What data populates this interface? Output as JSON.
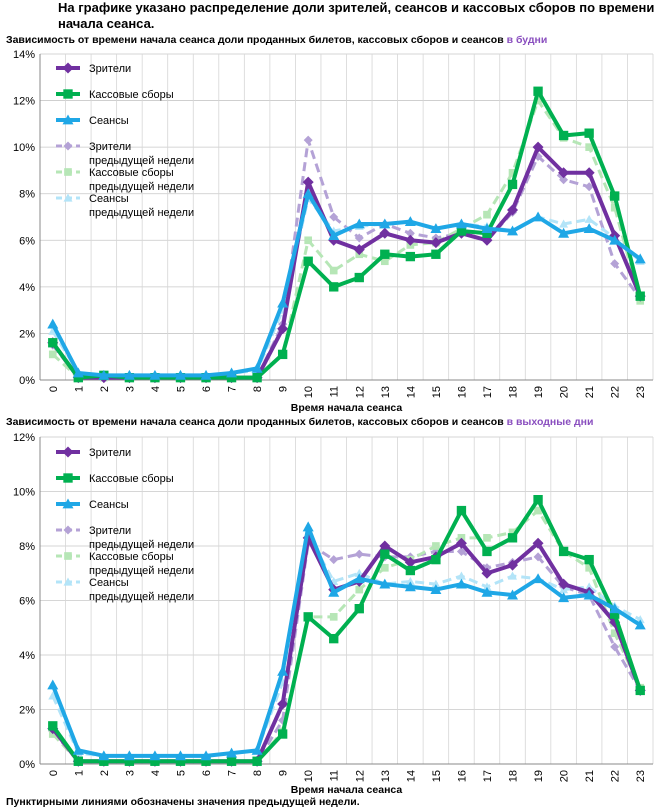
{
  "intro": "На графике указано распределение доли зрителей, сеансов и кассовых сборов по времени начала сеанса.",
  "footnote": "Пунктирными линиями обозначены значения предыдущей недели.",
  "colors": {
    "viewers": "#7030a0",
    "box_office": "#00b050",
    "sessions": "#1fa7e6",
    "viewers_prev": "#b4a2d6",
    "box_office_prev": "#b6e6b6",
    "sessions_prev": "#b3e4f8",
    "accent": "#8a4fbf"
  },
  "chart_data": [
    {
      "type": "line",
      "title_prefix": "Зависимость от времени начала сеанса доли проданных билетов, кассовых сборов и сеансов",
      "title_accent": "в будни",
      "xlabel": "Время начала сеанса",
      "ylabel": "",
      "ylim": [
        0,
        14
      ],
      "yticks": [
        "0%",
        "2%",
        "4%",
        "6%",
        "8%",
        "10%",
        "12%",
        "14%"
      ],
      "categories": [
        "0",
        "1",
        "2",
        "3",
        "4",
        "5",
        "6",
        "7",
        "8",
        "9",
        "10",
        "11",
        "12",
        "13",
        "14",
        "15",
        "16",
        "17",
        "18",
        "19",
        "20",
        "21",
        "22",
        "23"
      ],
      "grid": true,
      "legend_position": "top-left",
      "series": [
        {
          "name": "Зрители предыдущей недели",
          "key": "viewers_prev",
          "dashed": true,
          "marker": "diamond",
          "values": [
            1.5,
            0.1,
            0.1,
            0.1,
            0.1,
            0.1,
            0.1,
            0.1,
            0.1,
            2.4,
            10.3,
            7.0,
            6.1,
            6.7,
            6.3,
            6.1,
            6.3,
            6.0,
            7.2,
            9.6,
            8.6,
            8.3,
            5.0,
            3.5
          ]
        },
        {
          "name": "Кассовые сборы предыдущей недели",
          "key": "box_office_prev",
          "dashed": true,
          "marker": "square",
          "values": [
            1.1,
            0.1,
            0.1,
            0.1,
            0.1,
            0.1,
            0.1,
            0.1,
            0.1,
            1.1,
            6.0,
            4.7,
            5.4,
            5.1,
            5.8,
            5.9,
            6.5,
            7.1,
            8.9,
            12.0,
            10.4,
            10.0,
            7.4,
            3.4
          ]
        },
        {
          "name": "Сеансы предыдущей недели",
          "key": "sessions_prev",
          "dashed": true,
          "marker": "triangle",
          "values": [
            2.1,
            0.3,
            0.2,
            0.2,
            0.2,
            0.2,
            0.2,
            0.3,
            0.4,
            3.0,
            7.8,
            6.4,
            6.6,
            6.7,
            6.8,
            6.5,
            6.7,
            6.6,
            6.4,
            7.0,
            6.7,
            6.9,
            6.1,
            5.1
          ]
        },
        {
          "name": "Зрители",
          "key": "viewers",
          "dashed": false,
          "marker": "diamond",
          "values": [
            1.6,
            0.1,
            0.1,
            0.1,
            0.1,
            0.1,
            0.1,
            0.1,
            0.1,
            2.2,
            8.5,
            6.0,
            5.6,
            6.3,
            6.0,
            5.9,
            6.3,
            6.0,
            7.3,
            10.0,
            8.9,
            8.9,
            6.2,
            3.6
          ]
        },
        {
          "name": "Кассовые сборы",
          "key": "box_office",
          "dashed": false,
          "marker": "square",
          "values": [
            1.6,
            0.1,
            0.2,
            0.1,
            0.1,
            0.1,
            0.1,
            0.1,
            0.1,
            1.1,
            5.1,
            4.0,
            4.4,
            5.4,
            5.3,
            5.4,
            6.4,
            6.3,
            8.4,
            12.4,
            10.5,
            10.6,
            7.9,
            3.6
          ]
        },
        {
          "name": "Сеансы",
          "key": "sessions",
          "dashed": false,
          "marker": "triangle",
          "values": [
            2.4,
            0.3,
            0.2,
            0.2,
            0.2,
            0.2,
            0.2,
            0.3,
            0.5,
            3.3,
            8.0,
            6.2,
            6.7,
            6.7,
            6.8,
            6.5,
            6.7,
            6.5,
            6.4,
            7.0,
            6.3,
            6.5,
            6.0,
            5.2
          ]
        }
      ]
    },
    {
      "type": "line",
      "title_prefix": "Зависимость от времени начала сеанса доли проданных билетов, кассовых сборов и сеансов",
      "title_accent": "в выходные дни",
      "xlabel": "Время начала сеанса",
      "ylabel": "",
      "ylim": [
        0,
        12
      ],
      "yticks": [
        "0%",
        "2%",
        "4%",
        "6%",
        "8%",
        "10%",
        "12%"
      ],
      "categories": [
        "0",
        "1",
        "2",
        "3",
        "4",
        "5",
        "6",
        "7",
        "8",
        "9",
        "10",
        "11",
        "12",
        "13",
        "14",
        "15",
        "16",
        "17",
        "18",
        "19",
        "20",
        "21",
        "22",
        "23"
      ],
      "grid": true,
      "legend_position": "top-left",
      "series": [
        {
          "name": "Зрители предыдущей недели",
          "key": "viewers_prev",
          "dashed": true,
          "marker": "diamond",
          "values": [
            1.2,
            0.1,
            0.1,
            0.1,
            0.1,
            0.1,
            0.1,
            0.1,
            0.1,
            1.6,
            8.1,
            7.5,
            7.7,
            7.6,
            7.6,
            7.8,
            7.8,
            7.2,
            7.4,
            7.6,
            6.5,
            6.2,
            4.3,
            2.7
          ]
        },
        {
          "name": "Кассовые сборы предыдущей недели",
          "key": "box_office_prev",
          "dashed": true,
          "marker": "square",
          "values": [
            1.1,
            0.1,
            0.1,
            0.1,
            0.1,
            0.1,
            0.1,
            0.1,
            0.1,
            1.2,
            5.4,
            5.4,
            6.4,
            7.2,
            7.5,
            8.0,
            8.3,
            8.3,
            8.5,
            9.3,
            7.8,
            7.2,
            4.8,
            2.8
          ]
        },
        {
          "name": "Сеансы предыдущей недели",
          "key": "sessions_prev",
          "dashed": true,
          "marker": "triangle",
          "values": [
            2.5,
            0.4,
            0.3,
            0.3,
            0.3,
            0.3,
            0.3,
            0.4,
            0.5,
            3.0,
            8.4,
            6.7,
            7.0,
            6.6,
            6.7,
            6.6,
            6.9,
            6.5,
            6.9,
            6.8,
            6.4,
            6.5,
            5.8,
            5.3
          ]
        },
        {
          "name": "Зрители",
          "key": "viewers",
          "dashed": false,
          "marker": "diamond",
          "values": [
            1.3,
            0.1,
            0.1,
            0.1,
            0.1,
            0.1,
            0.1,
            0.1,
            0.1,
            2.2,
            8.3,
            6.4,
            6.7,
            8.0,
            7.4,
            7.6,
            8.1,
            7.0,
            7.3,
            8.1,
            6.6,
            6.3,
            5.2,
            2.7
          ]
        },
        {
          "name": "Кассовые сборы",
          "key": "box_office",
          "dashed": false,
          "marker": "square",
          "values": [
            1.4,
            0.1,
            0.1,
            0.1,
            0.1,
            0.1,
            0.1,
            0.1,
            0.1,
            1.1,
            5.4,
            4.6,
            5.7,
            7.7,
            7.1,
            7.5,
            9.3,
            7.8,
            8.3,
            9.7,
            7.8,
            7.5,
            5.5,
            2.7
          ]
        },
        {
          "name": "Сеансы",
          "key": "sessions",
          "dashed": false,
          "marker": "triangle",
          "values": [
            2.9,
            0.5,
            0.3,
            0.3,
            0.3,
            0.3,
            0.3,
            0.4,
            0.5,
            3.4,
            8.7,
            6.3,
            6.8,
            6.6,
            6.5,
            6.4,
            6.6,
            6.3,
            6.2,
            6.8,
            6.1,
            6.2,
            5.7,
            5.1
          ]
        }
      ]
    }
  ]
}
